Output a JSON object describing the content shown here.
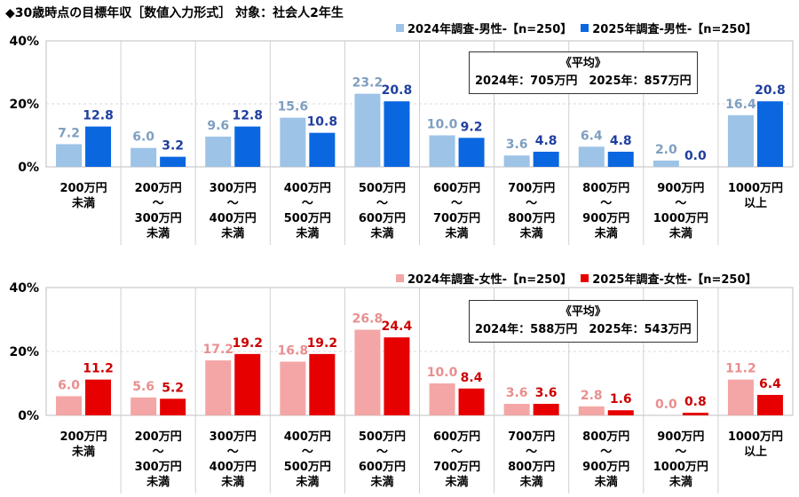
{
  "title": "◆30歳時点の目標年収［数値入力形式］ 対象：社会人2年生",
  "chart_data": [
    {
      "type": "bar",
      "categories": [
        [
          "200万円",
          "未満"
        ],
        [
          "200万円",
          "～",
          "300万円",
          "未満"
        ],
        [
          "300万円",
          "～",
          "400万円",
          "未満"
        ],
        [
          "400万円",
          "～",
          "500万円",
          "未満"
        ],
        [
          "500万円",
          "～",
          "600万円",
          "未満"
        ],
        [
          "600万円",
          "～",
          "700万円",
          "未満"
        ],
        [
          "700万円",
          "～",
          "800万円",
          "未満"
        ],
        [
          "800万円",
          "～",
          "900万円",
          "未満"
        ],
        [
          "900万円",
          "～",
          "1000万円",
          "未満"
        ],
        [
          "1000万円",
          "以上"
        ]
      ],
      "series": [
        {
          "name": "2024年調査-男性-【n=250】",
          "color": "#9dc3e6",
          "label_color": "#7f9fc0",
          "values": [
            7.2,
            6.0,
            9.6,
            15.6,
            23.2,
            10.0,
            3.6,
            6.4,
            2.0,
            16.4
          ]
        },
        {
          "name": "2025年調査-男性-【n=250】",
          "color": "#0a67e0",
          "label_color": "#1f3f9f",
          "values": [
            12.8,
            3.2,
            12.8,
            10.8,
            20.8,
            9.2,
            4.8,
            4.8,
            0.0,
            20.8
          ]
        }
      ],
      "yticks": [
        "0%",
        "20%",
        "40%"
      ],
      "ylim": [
        0,
        40
      ],
      "average_box": {
        "heading": "《平均》",
        "text": "2024年：705万円　2025年：857万円"
      }
    },
    {
      "type": "bar",
      "categories": [
        [
          "200万円",
          "未満"
        ],
        [
          "200万円",
          "～",
          "300万円",
          "未満"
        ],
        [
          "300万円",
          "～",
          "400万円",
          "未満"
        ],
        [
          "400万円",
          "～",
          "500万円",
          "未満"
        ],
        [
          "500万円",
          "～",
          "600万円",
          "未満"
        ],
        [
          "600万円",
          "～",
          "700万円",
          "未満"
        ],
        [
          "700万円",
          "～",
          "800万円",
          "未満"
        ],
        [
          "800万円",
          "～",
          "900万円",
          "未満"
        ],
        [
          "900万円",
          "～",
          "1000万円",
          "未満"
        ],
        [
          "1000万円",
          "以上"
        ]
      ],
      "series": [
        {
          "name": "2024年調査-女性-【n=250】",
          "color": "#f4a6a6",
          "label_color": "#e88f8f",
          "values": [
            6.0,
            5.6,
            17.2,
            16.8,
            26.8,
            10.0,
            3.6,
            2.8,
            0.0,
            11.2
          ]
        },
        {
          "name": "2025年調査-女性-【n=250】",
          "color": "#e60000",
          "label_color": "#cc0000",
          "values": [
            11.2,
            5.2,
            19.2,
            19.2,
            24.4,
            8.4,
            3.6,
            1.6,
            0.8,
            6.4
          ]
        }
      ],
      "yticks": [
        "0%",
        "20%",
        "40%"
      ],
      "ylim": [
        0,
        40
      ],
      "average_box": {
        "heading": "《平均》",
        "text": "2024年：588万円　2025年：543万円"
      }
    }
  ]
}
